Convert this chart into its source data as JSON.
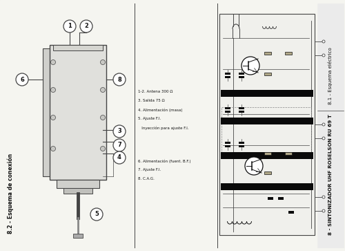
{
  "bg_color": "#e8e8e8",
  "page_bg": "#f5f5f0",
  "title_main": "8 - SINTONIZADOR UHF ROSELSON RU 69 T",
  "title_sub1": "8.1 - Esquema eléctrico",
  "title_sub2": "8.2 - Esquema de conexión",
  "legend_left": [
    "1-2. Antena 300 Ω",
    "3. Salida 75 Ω",
    "4. Alimentación (masa)",
    "5. Ajuste F.I.",
    "   Inyección para ajuste F.I."
  ],
  "legend_right": [
    "6. Alimentación (fuent. B.F.)",
    "7. Ajuste F.I.",
    "8. C.A.G."
  ],
  "lc": "#444444",
  "dc": "#111111",
  "band_color": "#0a0a0a",
  "body_fill": "#e0e0dc",
  "schem_fill": "#f0f0ec"
}
